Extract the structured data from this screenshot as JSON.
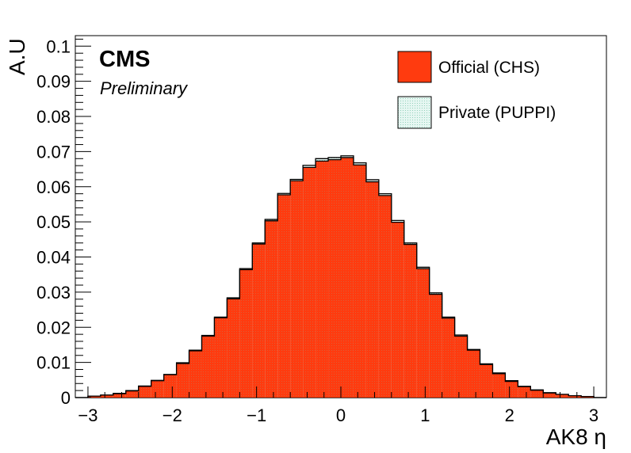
{
  "colors": {
    "official_fill": "#ff3b0f",
    "private_fill": "#e6f7f2",
    "private_hatch": "#7fc8b0",
    "axis": "#000000"
  },
  "chart_data": {
    "type": "bar",
    "title": "",
    "xlabel": "AK8 η",
    "ylabel": "A.U",
    "xlim": [
      -3.15,
      3.15
    ],
    "ylim": [
      0,
      0.103
    ],
    "x_ticks": [
      -3,
      -2,
      -1,
      0,
      1,
      2,
      3
    ],
    "x_tick_labels": [
      "−3",
      "−2",
      "−1",
      "0",
      "1",
      "2",
      "3"
    ],
    "y_ticks": [
      0,
      0.01,
      0.02,
      0.03,
      0.04,
      0.05,
      0.06,
      0.07,
      0.08,
      0.09,
      0.1
    ],
    "y_tick_labels": [
      "0",
      "0.01",
      "0.02",
      "0.03",
      "0.04",
      "0.05",
      "0.06",
      "0.07",
      "0.08",
      "0.09",
      "0.1"
    ],
    "annotations": [
      "CMS",
      "Preliminary"
    ],
    "legend_position": "top-right",
    "bin_edges": [
      -3.0,
      -2.85,
      -2.7,
      -2.55,
      -2.4,
      -2.25,
      -2.1,
      -1.95,
      -1.8,
      -1.65,
      -1.5,
      -1.35,
      -1.2,
      -1.05,
      -0.9,
      -0.75,
      -0.6,
      -0.45,
      -0.3,
      -0.15,
      0.0,
      0.15,
      0.3,
      0.45,
      0.6,
      0.75,
      0.9,
      1.05,
      1.2,
      1.35,
      1.5,
      1.65,
      1.8,
      1.95,
      2.1,
      2.25,
      2.4,
      2.55,
      2.7,
      2.85,
      3.0
    ],
    "series": [
      {
        "name": "Official (CHS)",
        "values": [
          0.0004,
          0.0007,
          0.0011,
          0.0019,
          0.0032,
          0.0048,
          0.0065,
          0.0097,
          0.0133,
          0.0175,
          0.0227,
          0.0281,
          0.0364,
          0.0437,
          0.0503,
          0.0577,
          0.0617,
          0.0655,
          0.0673,
          0.0677,
          0.0683,
          0.0662,
          0.0614,
          0.0575,
          0.0499,
          0.0436,
          0.0367,
          0.0294,
          0.0226,
          0.0175,
          0.0135,
          0.0094,
          0.0068,
          0.0046,
          0.0031,
          0.0021,
          0.0013,
          0.0009,
          0.0005,
          0.0003
        ]
      },
      {
        "name": "Private (PUPPI)",
        "values": [
          0.0004,
          0.0007,
          0.0012,
          0.002,
          0.0033,
          0.0049,
          0.0066,
          0.0099,
          0.0135,
          0.0177,
          0.0229,
          0.0284,
          0.0367,
          0.044,
          0.0507,
          0.0581,
          0.0621,
          0.0661,
          0.068,
          0.0683,
          0.0688,
          0.0668,
          0.062,
          0.058,
          0.0504,
          0.044,
          0.0371,
          0.0298,
          0.0229,
          0.0178,
          0.0137,
          0.0096,
          0.007,
          0.0048,
          0.0032,
          0.0022,
          0.0014,
          0.0009,
          0.0005,
          0.0003
        ]
      }
    ]
  }
}
